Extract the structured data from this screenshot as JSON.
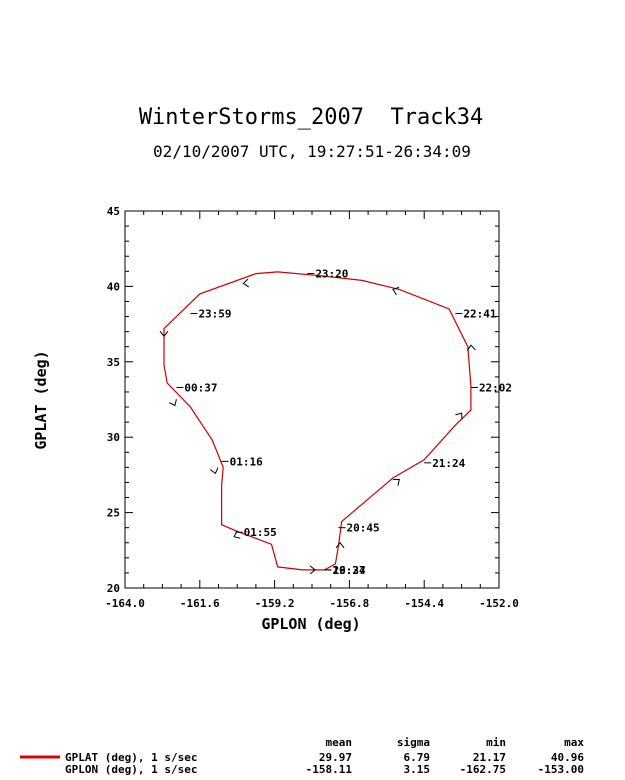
{
  "chart_data": {
    "type": "line",
    "title": "WinterStorms_2007  Track34",
    "subtitle": "02/10/2007 UTC, 19:27:51-26:34:09",
    "xlabel": "GPLON (deg)",
    "ylabel": "GPLAT (deg)",
    "xlim": [
      -164.0,
      -152.0
    ],
    "ylim": [
      20,
      45
    ],
    "xticks": [
      -164.0,
      -161.6,
      -159.2,
      -156.8,
      -154.4,
      -152.0
    ],
    "xtick_labels": [
      "-164.0",
      "-161.6",
      "-159.2",
      "-156.8",
      "-154.4",
      "-152.0"
    ],
    "yticks": [
      20,
      25,
      30,
      35,
      40,
      45
    ],
    "ytick_labels": [
      "20",
      "25",
      "30",
      "35",
      "40",
      "45"
    ],
    "color": "#cc0000",
    "series": [
      {
        "x": [
          -157.6,
          -157.25,
          -157.15,
          -157.05,
          -155.4,
          -154.4,
          -153.4,
          -152.9,
          -152.9,
          -153.0,
          -153.6,
          -155.2,
          -156.4,
          -157.7,
          -159.1,
          -159.8,
          -161.6,
          -162.75,
          -162.75,
          -162.65,
          -161.9,
          -161.2,
          -160.85,
          -160.9,
          -160.9,
          -160.45,
          -159.3,
          -159.1,
          -158.3,
          -157.6
        ],
        "y": [
          21.2,
          21.6,
          22.8,
          24.4,
          27.3,
          28.5,
          30.8,
          31.8,
          33.4,
          36.0,
          38.5,
          39.8,
          40.4,
          40.7,
          40.96,
          40.85,
          39.5,
          37.2,
          34.8,
          33.6,
          32.0,
          29.8,
          28.0,
          26.8,
          24.2,
          23.8,
          22.9,
          21.4,
          21.2,
          21.2
        ]
      }
    ],
    "direction_arrows": [
      {
        "x": -157.9,
        "y": 21.2,
        "angle": 0
      },
      {
        "x": -157.1,
        "y": 23.0,
        "angle": -90
      },
      {
        "x": -155.2,
        "y": 27.2,
        "angle": -40
      },
      {
        "x": -153.2,
        "y": 31.6,
        "angle": -55
      },
      {
        "x": -152.9,
        "y": 36.1,
        "angle": -95
      },
      {
        "x": -155.4,
        "y": 39.8,
        "angle": 200
      },
      {
        "x": -160.2,
        "y": 40.2,
        "angle": 175
      },
      {
        "x": -162.75,
        "y": 36.7,
        "angle": 90
      },
      {
        "x": -162.4,
        "y": 32.1,
        "angle": 65
      },
      {
        "x": -161.1,
        "y": 27.6,
        "angle": 75
      },
      {
        "x": -160.5,
        "y": 23.4,
        "angle": 155
      }
    ],
    "annotations": [
      {
        "label": "23:20",
        "x": -158.15,
        "y": 40.85
      },
      {
        "label": "22:41",
        "x": -153.4,
        "y": 38.2
      },
      {
        "label": "22:02",
        "x": -152.9,
        "y": 33.3
      },
      {
        "label": "21:24",
        "x": -154.4,
        "y": 28.3
      },
      {
        "label": "20:45",
        "x": -157.15,
        "y": 24.0
      },
      {
        "label": "19:27",
        "x": -157.6,
        "y": 21.2
      },
      {
        "label": "26:34",
        "x": -157.6,
        "y": 21.2
      },
      {
        "label": "23:59",
        "x": -161.9,
        "y": 38.2
      },
      {
        "label": "00:37",
        "x": -162.35,
        "y": 33.3
      },
      {
        "label": "01:16",
        "x": -160.9,
        "y": 28.4
      },
      {
        "label": "01:55",
        "x": -160.45,
        "y": 23.7
      }
    ]
  },
  "stats_table": {
    "headers": [
      "mean",
      "sigma",
      "min",
      "max"
    ],
    "rows": [
      {
        "label": "GPLAT (deg), 1 s/sec",
        "values": [
          "29.97",
          "6.79",
          "21.17",
          "40.96"
        ]
      },
      {
        "label": "GPLON (deg), 1 s/sec",
        "values": [
          "-158.11",
          "3.15",
          "-162.75",
          "-153.00"
        ]
      }
    ],
    "legend_color": "#dd0000"
  }
}
